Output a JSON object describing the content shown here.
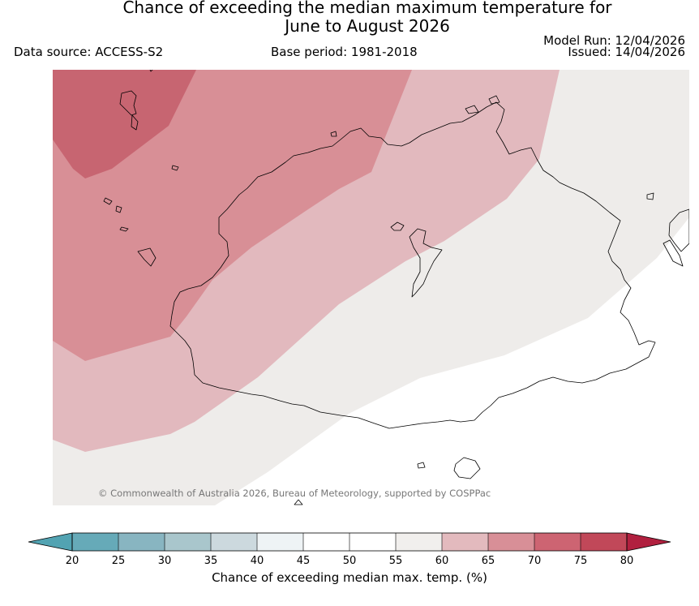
{
  "title": {
    "line1": "Chance of exceeding the median maximum temperature for",
    "line2": "June to August 2026"
  },
  "header": {
    "data_source": "Data source: ACCESS-S2",
    "base_period": "Base period: 1981-2018",
    "model_run": "Model Run: 12/04/2026",
    "issued": "Issued: 14/04/2026"
  },
  "map": {
    "copyright": "© Commonwealth of Australia 2026, Bureau of Meteorology, supported by COSPPac",
    "zones": [
      {
        "range": "75-80",
        "color": "#c76571"
      },
      {
        "range": "70-75",
        "color": "#d88f96"
      },
      {
        "range": "65-70",
        "color": "#e2b9be"
      },
      {
        "range": "55-60",
        "color": "#eeecea"
      },
      {
        "range": "45-55",
        "color": "#ffffff"
      }
    ]
  },
  "legend": {
    "label": "Chance of exceeding median max. temp. (%)",
    "ticks": [
      "20",
      "25",
      "30",
      "35",
      "40",
      "45",
      "50",
      "55",
      "60",
      "65",
      "70",
      "75",
      "80"
    ],
    "low_extend_color": "#52a3b2",
    "high_extend_color": "#b1203f",
    "colors": [
      "#66aab8",
      "#88b5c1",
      "#a9c6cc",
      "#ccd9de",
      "#eef3f5",
      "#ffffff",
      "#ffffff",
      "#f1efed",
      "#e3babe",
      "#d88f97",
      "#cd6472",
      "#c14859"
    ]
  }
}
